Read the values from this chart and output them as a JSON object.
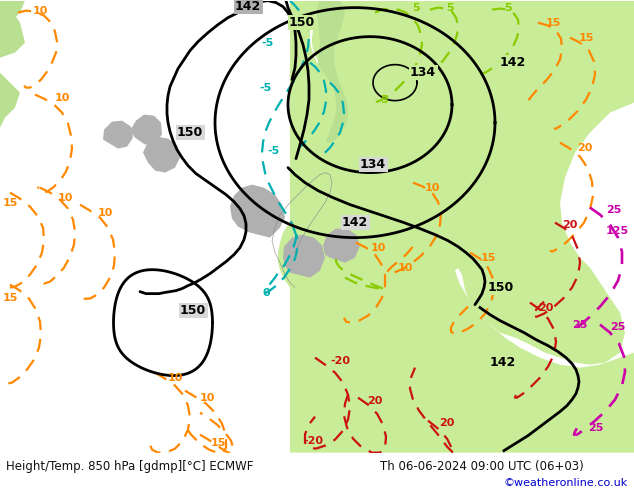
{
  "title_left": "Height/Temp. 850 hPa [gdmp][°C] ECMWF",
  "title_right": "Th 06-06-2024 09:00 UTC (06+03)",
  "credit": "©weatheronline.co.uk",
  "figsize": [
    6.34,
    4.9
  ],
  "dpi": 100,
  "bg_ocean": "#d8d8d8",
  "bg_land_green": "#b8e090",
  "bg_land_green2": "#c8ec98",
  "bg_land_gray": "#b0b0b0",
  "footer_bg": "#ffffff",
  "text_color": "#111111",
  "credit_color": "#0000cc",
  "black_lw": 2.0,
  "cyan_color": "#00b0b0",
  "green_color": "#88cc00",
  "orange_color": "#ff8800",
  "red_color": "#cc1111",
  "pink_color": "#cc00aa",
  "dash": [
    6,
    4
  ],
  "label_fs": 8,
  "contour_lw": 1.6
}
